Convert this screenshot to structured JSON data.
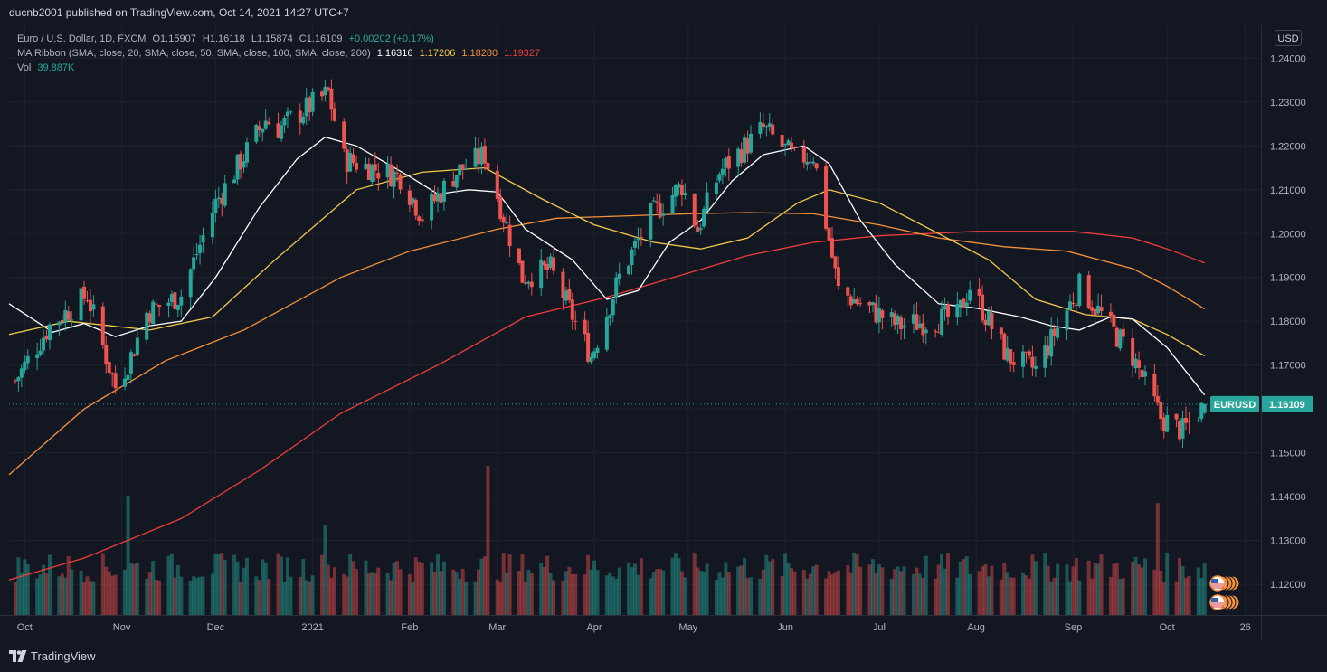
{
  "header": {
    "published_line": "ducnb2001 published on TradingView.com, Oct 14, 2021 14:27 UTC+7"
  },
  "legend": {
    "symbol_line": {
      "name": "Euro / U.S. Dollar, 1D, FXCM",
      "open": "O1.15907",
      "high": "H1.16118",
      "low": "L1.15874",
      "close": "C1.16109",
      "change": "+0.00202 (+0.17%)"
    },
    "ma_line": {
      "label": "MA Ribbon (SMA, close, 20, SMA, close, 50, SMA, close, 100, SMA, close, 200)",
      "ma20": "1.16316",
      "ma50": "1.17206",
      "ma100": "1.18280",
      "ma200": "1.19327"
    },
    "vol_line": {
      "label": "Vol",
      "value": "39.887K"
    }
  },
  "currency_button": "USD",
  "footer": {
    "brand": "TradingView"
  },
  "colors": {
    "background": "#131722",
    "grid": "#1e222d",
    "up": "#26a69a",
    "down": "#ef5350",
    "ma20": "#ffffff",
    "ma50": "#f2c94c",
    "ma100": "#f5923b",
    "ma200": "#ef3c3c"
  },
  "chart_data": {
    "type": "candlestick",
    "symbol": "EURUSD",
    "last_price": 1.16109,
    "last_price_label": "1.16109",
    "ylim": [
      1.113,
      1.2475
    ],
    "y_ticks": [
      {
        "value": 1.24,
        "label": "1.24000"
      },
      {
        "value": 1.23,
        "label": "1.23000"
      },
      {
        "value": 1.22,
        "label": "1.22000"
      },
      {
        "value": 1.21,
        "label": "1.21000"
      },
      {
        "value": 1.2,
        "label": "1.20000"
      },
      {
        "value": 1.19,
        "label": "1.19000"
      },
      {
        "value": 1.18,
        "label": "1.18000"
      },
      {
        "value": 1.17,
        "label": "1.17000"
      },
      {
        "value": 1.16,
        "label": "1.16000"
      },
      {
        "value": 1.15,
        "label": "1.15000"
      },
      {
        "value": 1.14,
        "label": "1.14000"
      },
      {
        "value": 1.13,
        "label": "1.13000"
      },
      {
        "value": 1.12,
        "label": "1.12000"
      }
    ],
    "x_ticks": [
      {
        "label": "Oct",
        "date": "2020-10-01"
      },
      {
        "label": "Nov",
        "date": "2020-11-01"
      },
      {
        "label": "Dec",
        "date": "2020-12-01"
      },
      {
        "label": "2021",
        "date": "2021-01-01"
      },
      {
        "label": "Feb",
        "date": "2021-02-01"
      },
      {
        "label": "Mar",
        "date": "2021-03-01"
      },
      {
        "label": "Apr",
        "date": "2021-04-01"
      },
      {
        "label": "May",
        "date": "2021-05-01"
      },
      {
        "label": "Jun",
        "date": "2021-06-01"
      },
      {
        "label": "Jul",
        "date": "2021-07-01"
      },
      {
        "label": "Aug",
        "date": "2021-08-01"
      },
      {
        "label": "Sep",
        "date": "2021-09-01"
      },
      {
        "label": "Oct",
        "date": "2021-10-01"
      },
      {
        "label": "26",
        "date": "2021-10-26"
      }
    ],
    "x_range": [
      "2020-09-26",
      "2021-10-31"
    ],
    "close_path": [
      [
        "2020-09-25",
        1.163
      ],
      [
        "2020-10-09",
        1.179
      ],
      [
        "2020-10-21",
        1.186
      ],
      [
        "2020-10-30",
        1.165
      ],
      [
        "2020-11-04",
        1.172
      ],
      [
        "2020-11-09",
        1.182
      ],
      [
        "2020-11-20",
        1.186
      ],
      [
        "2020-12-01",
        1.207
      ],
      [
        "2020-12-17",
        1.226
      ],
      [
        "2020-12-21",
        1.224
      ],
      [
        "2021-01-06",
        1.232
      ],
      [
        "2021-01-11",
        1.217
      ],
      [
        "2021-01-29",
        1.213
      ],
      [
        "2021-02-05",
        1.204
      ],
      [
        "2021-02-16",
        1.214
      ],
      [
        "2021-02-25",
        1.218
      ],
      [
        "2021-03-09",
        1.19
      ],
      [
        "2021-03-18",
        1.192
      ],
      [
        "2021-03-31",
        1.172
      ],
      [
        "2021-04-09",
        1.19
      ],
      [
        "2021-04-19",
        1.204
      ],
      [
        "2021-04-29",
        1.211
      ],
      [
        "2021-05-04",
        1.201
      ],
      [
        "2021-05-11",
        1.214
      ],
      [
        "2021-05-25",
        1.224
      ],
      [
        "2021-06-04",
        1.217
      ],
      [
        "2021-06-10",
        1.218
      ],
      [
        "2021-06-18",
        1.187
      ],
      [
        "2021-07-07",
        1.179
      ],
      [
        "2021-07-26",
        1.181
      ],
      [
        "2021-07-30",
        1.188
      ],
      [
        "2021-08-11",
        1.172
      ],
      [
        "2021-08-20",
        1.169
      ],
      [
        "2021-09-03",
        1.188
      ],
      [
        "2021-09-20",
        1.172
      ],
      [
        "2021-09-29",
        1.158
      ],
      [
        "2021-10-06",
        1.155
      ],
      [
        "2021-10-13",
        1.161
      ]
    ],
    "series": [
      {
        "name": "MA20",
        "points": [
          [
            "2020-09-26",
            1.184
          ],
          [
            "2020-10-10",
            1.1775
          ],
          [
            "2020-10-20",
            1.1795
          ],
          [
            "2020-10-30",
            1.1765
          ],
          [
            "2020-11-10",
            1.179
          ],
          [
            "2020-11-20",
            1.18
          ],
          [
            "2020-12-01",
            1.19
          ],
          [
            "2020-12-15",
            1.206
          ],
          [
            "2020-12-27",
            1.217
          ],
          [
            "2021-01-05",
            1.222
          ],
          [
            "2021-01-15",
            1.22
          ],
          [
            "2021-02-01",
            1.213
          ],
          [
            "2021-02-10",
            1.209
          ],
          [
            "2021-02-20",
            1.21
          ],
          [
            "2021-03-01",
            1.2095
          ],
          [
            "2021-03-10",
            1.201
          ],
          [
            "2021-03-25",
            1.194
          ],
          [
            "2021-04-05",
            1.185
          ],
          [
            "2021-04-15",
            1.187
          ],
          [
            "2021-04-25",
            1.198
          ],
          [
            "2021-05-05",
            1.203
          ],
          [
            "2021-05-15",
            1.212
          ],
          [
            "2021-05-25",
            1.218
          ],
          [
            "2021-06-07",
            1.22
          ],
          [
            "2021-06-15",
            1.216
          ],
          [
            "2021-06-25",
            1.203
          ],
          [
            "2021-07-06",
            1.193
          ],
          [
            "2021-07-20",
            1.184
          ],
          [
            "2021-08-01",
            1.183
          ],
          [
            "2021-08-15",
            1.181
          ],
          [
            "2021-08-25",
            1.179
          ],
          [
            "2021-09-03",
            1.178
          ],
          [
            "2021-09-13",
            1.181
          ],
          [
            "2021-09-20",
            1.1805
          ],
          [
            "2021-10-01",
            1.174
          ],
          [
            "2021-10-13",
            1.1632
          ]
        ]
      },
      {
        "name": "MA50",
        "points": [
          [
            "2020-09-26",
            1.177
          ],
          [
            "2020-10-15",
            1.18
          ],
          [
            "2020-11-10",
            1.178
          ],
          [
            "2020-11-30",
            1.181
          ],
          [
            "2020-12-20",
            1.194
          ],
          [
            "2021-01-15",
            1.21
          ],
          [
            "2021-02-05",
            1.214
          ],
          [
            "2021-02-25",
            1.215
          ],
          [
            "2021-03-15",
            1.208
          ],
          [
            "2021-04-01",
            1.202
          ],
          [
            "2021-04-20",
            1.198
          ],
          [
            "2021-05-05",
            1.1965
          ],
          [
            "2021-05-20",
            1.199
          ],
          [
            "2021-06-05",
            1.207
          ],
          [
            "2021-06-15",
            1.21
          ],
          [
            "2021-07-01",
            1.207
          ],
          [
            "2021-07-20",
            1.2
          ],
          [
            "2021-08-05",
            1.194
          ],
          [
            "2021-08-20",
            1.185
          ],
          [
            "2021-09-05",
            1.1815
          ],
          [
            "2021-09-20",
            1.1805
          ],
          [
            "2021-10-01",
            1.177
          ],
          [
            "2021-10-13",
            1.1721
          ]
        ]
      },
      {
        "name": "MA100",
        "points": [
          [
            "2020-09-26",
            1.145
          ],
          [
            "2020-10-20",
            1.16
          ],
          [
            "2020-11-15",
            1.171
          ],
          [
            "2020-12-10",
            1.178
          ],
          [
            "2021-01-10",
            1.19
          ],
          [
            "2021-02-01",
            1.196
          ],
          [
            "2021-03-01",
            1.201
          ],
          [
            "2021-03-20",
            1.2035
          ],
          [
            "2021-04-10",
            1.204
          ],
          [
            "2021-05-01",
            1.2045
          ],
          [
            "2021-05-20",
            1.2048
          ],
          [
            "2021-06-10",
            1.2045
          ],
          [
            "2021-07-01",
            1.202
          ],
          [
            "2021-07-20",
            1.199
          ],
          [
            "2021-08-10",
            1.197
          ],
          [
            "2021-08-30",
            1.196
          ],
          [
            "2021-09-20",
            1.192
          ],
          [
            "2021-10-01",
            1.188
          ],
          [
            "2021-10-13",
            1.1828
          ]
        ]
      },
      {
        "name": "MA200",
        "points": [
          [
            "2020-09-26",
            1.121
          ],
          [
            "2020-10-20",
            1.126
          ],
          [
            "2020-11-20",
            1.135
          ],
          [
            "2020-12-15",
            1.146
          ],
          [
            "2021-01-10",
            1.159
          ],
          [
            "2021-02-10",
            1.17
          ],
          [
            "2021-03-10",
            1.181
          ],
          [
            "2021-04-05",
            1.1855
          ],
          [
            "2021-05-01",
            1.191
          ],
          [
            "2021-05-20",
            1.195
          ],
          [
            "2021-06-10",
            1.198
          ],
          [
            "2021-07-01",
            1.1995
          ],
          [
            "2021-08-01",
            1.2005
          ],
          [
            "2021-09-01",
            1.2005
          ],
          [
            "2021-09-20",
            1.199
          ],
          [
            "2021-10-01",
            1.1965
          ],
          [
            "2021-10-13",
            1.1933
          ]
        ]
      }
    ],
    "volume_spikes": [
      {
        "date": "2020-11-03",
        "ratio": 0.8
      },
      {
        "date": "2021-02-26",
        "ratio": 1.0
      },
      {
        "date": "2021-01-05",
        "ratio": 0.6
      },
      {
        "date": "2021-09-28",
        "ratio": 0.75
      }
    ]
  }
}
